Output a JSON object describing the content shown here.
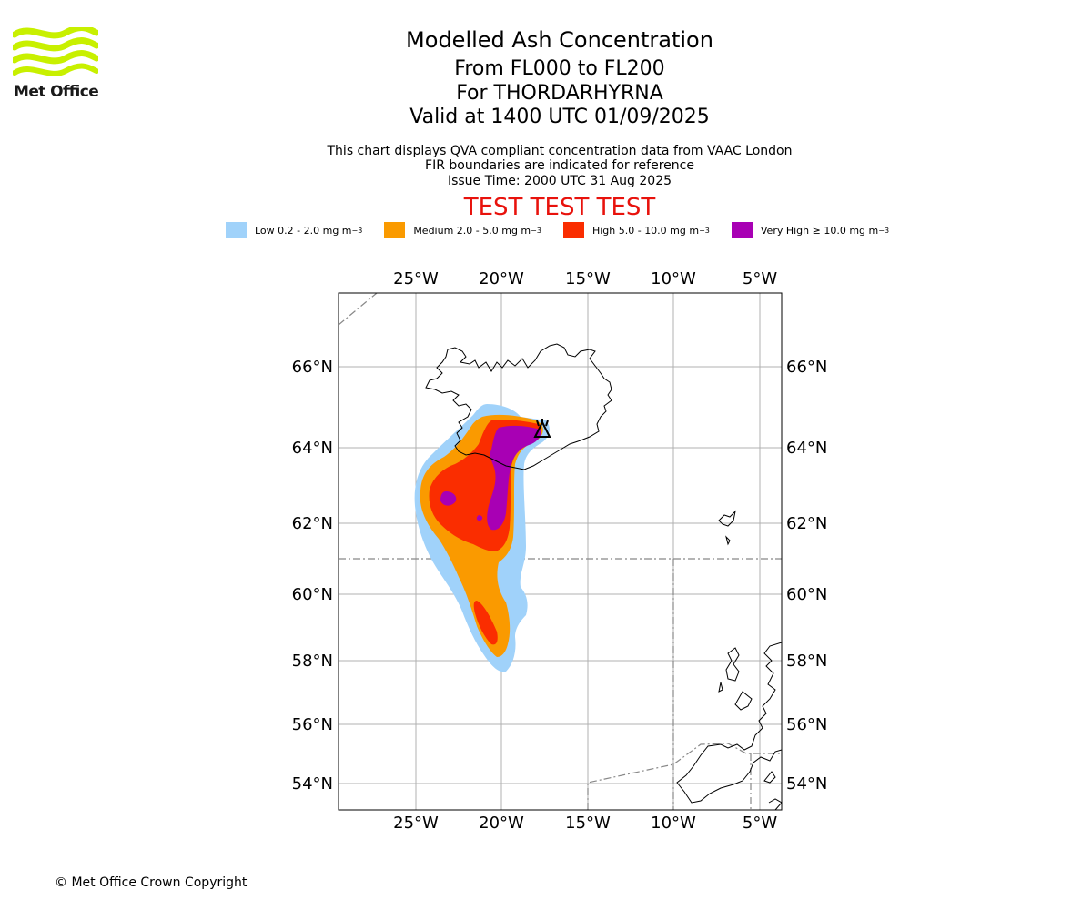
{
  "logo": {
    "text": "Met Office",
    "colors": {
      "waves": "#c8f000",
      "text": "#1a1a1a"
    }
  },
  "title": {
    "line1": "Modelled Ash Concentration",
    "line2": "From FL000 to FL200",
    "line3": "For THORDARHYRNA",
    "line4": "Valid at 1400 UTC 01/09/2025"
  },
  "subtitle": {
    "line1": "This chart displays QVA compliant concentration data from VAAC London",
    "line2": "FIR boundaries are indicated for reference",
    "line3": "Issue Time: 2000 UTC 31 Aug 2025"
  },
  "warning": "TEST TEST TEST",
  "legend": [
    {
      "label": "Low 0.2 - 2.0 mg m",
      "unit_exp": "−3",
      "color": "#a0d2fa"
    },
    {
      "label": "Medium 2.0 - 5.0 mg m",
      "unit_exp": "−3",
      "color": "#fa9a00"
    },
    {
      "label": "High 5.0 - 10.0 mg m",
      "unit_exp": "−3",
      "color": "#fa2d00"
    },
    {
      "label": "Very High ≥ 10.0 mg m",
      "unit_exp": "−3",
      "color": "#a800b4"
    }
  ],
  "map": {
    "lon_labels": [
      "25°W",
      "20°W",
      "15°W",
      "10°W",
      "5°W"
    ],
    "lat_labels": [
      "66°N",
      "64°N",
      "62°N",
      "60°N",
      "58°N",
      "56°N",
      "54°N"
    ],
    "volcano_symbol": "triangle",
    "grid": true,
    "fir_boundaries": true
  },
  "copyright": "© Met Office Crown Copyright"
}
